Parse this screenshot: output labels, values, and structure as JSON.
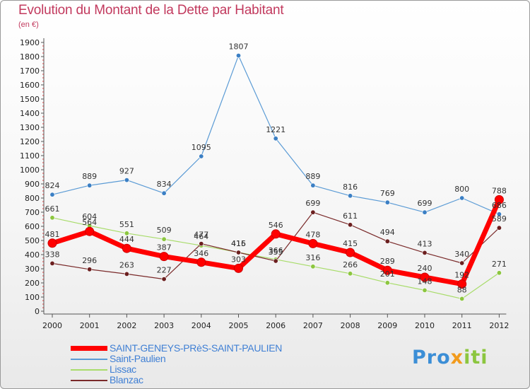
{
  "title": "Evolution du Montant de la Dette par Habitant",
  "subtitle": "(en €)",
  "logo": {
    "part1": "Pro",
    "part2": "x",
    "part3": "iti"
  },
  "chart_data": {
    "type": "line",
    "x": [
      "2000",
      "2001",
      "2002",
      "2003",
      "2004",
      "2005",
      "2006",
      "2007",
      "2008",
      "2009",
      "2010",
      "2011",
      "2012"
    ],
    "ylim": [
      0,
      1900
    ],
    "yticks": [
      0,
      100,
      200,
      300,
      400,
      500,
      600,
      700,
      800,
      900,
      1000,
      1100,
      1200,
      1300,
      1400,
      1500,
      1600,
      1700,
      1800,
      1900
    ],
    "grid": false,
    "legend_position": "bottom-left",
    "series": [
      {
        "name": "Saint-Paulien",
        "color": "#5b9bd5",
        "width": 1.2,
        "marker": "#3b7fc4",
        "values": [
          824,
          889,
          927,
          834,
          1095,
          1807,
          1221,
          889,
          816,
          769,
          699,
          800,
          686
        ],
        "labels": [
          "824",
          "889",
          "927",
          "834",
          "1095",
          "1807",
          "1221",
          "889",
          "816",
          "769",
          "699",
          "800",
          "686"
        ]
      },
      {
        "name": "Lissac",
        "color": "#a8dc6a",
        "width": 1.2,
        "marker": "#8cc63f",
        "values": [
          661,
          604,
          551,
          509,
          464,
          416,
          366,
          316,
          266,
          201,
          148,
          88,
          271
        ],
        "labels": [
          "661",
          "604",
          "551",
          "509",
          "464",
          "416",
          "366",
          "316",
          "266",
          "201",
          "148",
          "88",
          "271"
        ]
      },
      {
        "name": "Blanzac",
        "color": "#7a2a2a",
        "width": 1.2,
        "marker": "#6b1f1f",
        "values": [
          338,
          296,
          263,
          227,
          477,
          415,
          355,
          699,
          611,
          494,
          413,
          340,
          589
        ],
        "labels": [
          "338",
          "296",
          "263",
          "227",
          "477",
          "415",
          "355",
          "699",
          "611",
          "494",
          "413",
          "340",
          "589"
        ]
      },
      {
        "name": "SAINT-GENEYS-PRèS-SAINT-PAULIEN",
        "color": "#ff0000",
        "width": 7,
        "marker": "#ff0000",
        "values": [
          481,
          564,
          444,
          387,
          346,
          303,
          546,
          478,
          415,
          289,
          240,
          192,
          788
        ],
        "labels": [
          "481",
          "564",
          "444",
          "387",
          "346",
          "303",
          "546",
          "478",
          "415",
          "289",
          "240",
          "192",
          "788"
        ]
      }
    ],
    "legend_order": [
      "SAINT-GENEYS-PRèS-SAINT-PAULIEN",
      "Saint-Paulien",
      "Lissac",
      "Blanzac"
    ]
  }
}
